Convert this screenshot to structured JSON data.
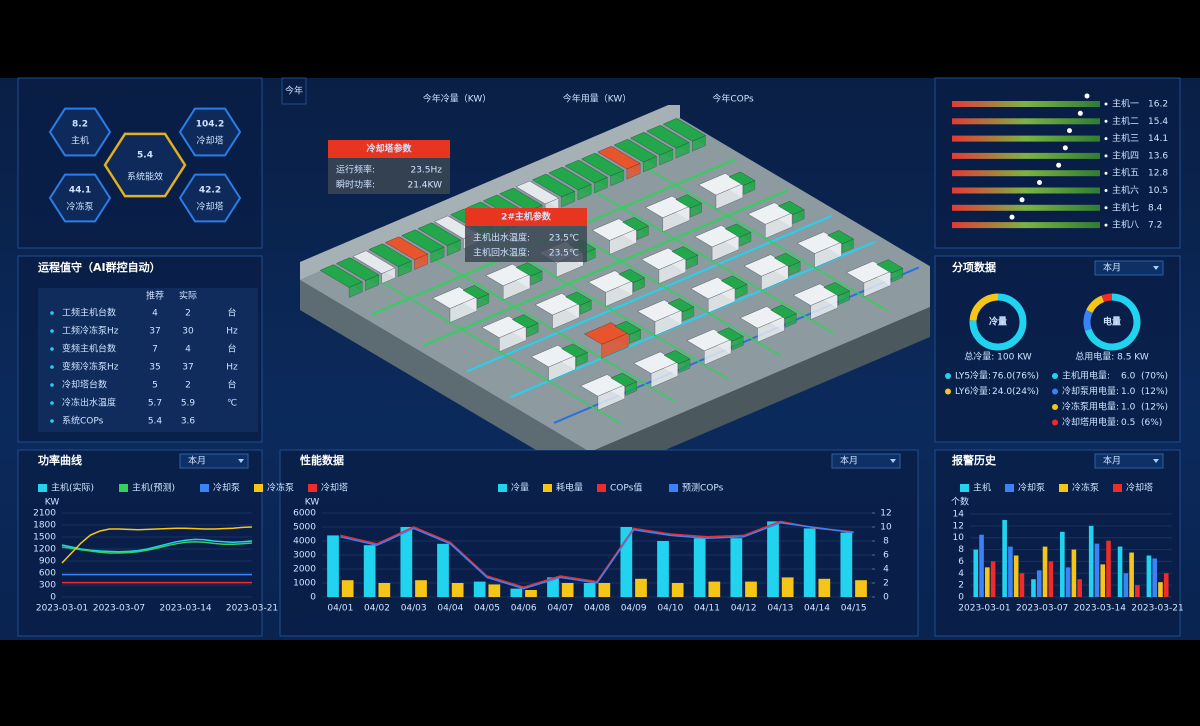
{
  "system_efficiency": {
    "center": {
      "value": 5.4,
      "label": "系统能效"
    },
    "items": [
      {
        "value": 8.2,
        "label": "主机"
      },
      {
        "value": 104.2,
        "label": "冷却塔"
      },
      {
        "value": 44.1,
        "label": "冷冻泵"
      },
      {
        "value": 42.2,
        "label": "冷却塔"
      }
    ]
  },
  "annual": {
    "badge": "今年",
    "labels": [
      "今年冷量（KW）",
      "今年用量（KW）",
      "今年COPs"
    ]
  },
  "duty": {
    "title": "运程值守（AI群控自动）",
    "columns": [
      "推荐",
      "实际"
    ],
    "rows": [
      [
        "工频主机台数",
        4,
        2,
        "台"
      ],
      [
        "工频冷冻泵Hz",
        37,
        30,
        "Hz"
      ],
      [
        "变频主机台数",
        7,
        4,
        "台"
      ],
      [
        "变频冷冻泵Hz",
        35,
        37,
        "Hz"
      ],
      [
        "冷却塔台数",
        5,
        2,
        "台"
      ],
      [
        "冷冻出水温度",
        5.7,
        5.9,
        "℃"
      ],
      [
        "系统COPs",
        5.4,
        3.6
      ]
    ]
  },
  "popups": [
    {
      "title": "冷却塔参数",
      "rows": [
        [
          "运行频率:",
          "23.5Hz"
        ],
        [
          "瞬时功率:",
          "21.4KW"
        ]
      ]
    },
    {
      "title": "2#主机参数",
      "rows": [
        [
          "主机出水温度:",
          "23.5℃"
        ],
        [
          "主机回水温度:",
          "23.5℃"
        ]
      ]
    }
  ],
  "hosts": [
    {
      "name": "主机一",
      "value": 16.2
    },
    {
      "name": "主机二",
      "value": 15.4
    },
    {
      "name": "主机三",
      "value": 14.1
    },
    {
      "name": "主机四",
      "value": 13.6
    },
    {
      "name": "主机五",
      "value": 12.8
    },
    {
      "name": "主机六",
      "value": 10.5
    },
    {
      "name": "主机七",
      "value": 8.4
    },
    {
      "name": "主机八",
      "value": 7.2
    }
  ],
  "breakdown": {
    "title": "分项数据",
    "dropdown": "本月",
    "donuts": [
      {
        "label": "冷量",
        "total": "总冷量: 100 KW",
        "items": [
          {
            "name": "LY5冷量:",
            "value": 76,
            "value_label": "76.0",
            "percent": 76,
            "percent_label": "(76%)",
            "color": "#22d3f0"
          },
          {
            "name": "LY6冷量:",
            "value": 24,
            "value_label": "24.0",
            "percent": 24,
            "percent_label": "(24%)",
            "color": "#f5c518"
          }
        ]
      },
      {
        "label": "电量",
        "total": "总用电量: 8.5 KW",
        "items": [
          {
            "name": "主机用电量:",
            "value": 6,
            "value_label": "6.0",
            "percent": 70,
            "percent_label": "(70%)",
            "color": "#22d3f0"
          },
          {
            "name": "冷却泵用电量:",
            "value": 1,
            "value_label": "1.0",
            "percent": 12,
            "percent_label": "(12%)",
            "color": "#3b82f6"
          },
          {
            "name": "冷冻泵用电量:",
            "value": 1,
            "value_label": "1.0",
            "percent": 12,
            "percent_label": "(12%)",
            "color": "#f5c518"
          },
          {
            "name": "冷却塔用电量:",
            "value": 0.5,
            "value_label": "0.5",
            "percent": 6,
            "percent_label": "(6%)",
            "color": "#ef2b2b"
          }
        ]
      }
    ]
  },
  "chart_data": [
    {
      "type": "line",
      "title": "功率曲线",
      "dropdown": "本月",
      "y_label": "KW",
      "categories": [
        "2023-03-01",
        null,
        null,
        null,
        null,
        null,
        "2023-03-07",
        null,
        null,
        null,
        null,
        null,
        null,
        "2023-03-14",
        null,
        null,
        null,
        null,
        null,
        null,
        "2023-03-21"
      ],
      "series": [
        {
          "name": "主机(实际)",
          "color": "#22d3f0",
          "values": [
            1300,
            1250,
            1200,
            1170,
            1150,
            1140,
            1130,
            1140,
            1160,
            1200,
            1260,
            1320,
            1380,
            1420,
            1440,
            1430,
            1400,
            1380,
            1370,
            1380,
            1400
          ]
        },
        {
          "name": "主机(预测)",
          "color": "#34d058",
          "values": [
            1250,
            1220,
            1180,
            1150,
            1120,
            1100,
            1100,
            1110,
            1130,
            1170,
            1220,
            1280,
            1330,
            1370,
            1380,
            1370,
            1340,
            1320,
            1320,
            1330,
            1350
          ]
        },
        {
          "name": "冷却泵",
          "color": "#3b82f6",
          "values": [
            560,
            560,
            560,
            560,
            560,
            560,
            560,
            560,
            560,
            560,
            560,
            560,
            560,
            560,
            560,
            560,
            560,
            560,
            560,
            560,
            560
          ]
        },
        {
          "name": "冷冻泵",
          "color": "#f5c518",
          "values": [
            850,
            1100,
            1350,
            1550,
            1650,
            1700,
            1700,
            1690,
            1680,
            1690,
            1700,
            1710,
            1720,
            1720,
            1710,
            1700,
            1700,
            1710,
            1720,
            1740,
            1750
          ]
        },
        {
          "name": "冷却塔",
          "color": "#ef2b2b",
          "values": [
            360,
            360,
            360,
            360,
            360,
            360,
            360,
            360,
            360,
            360,
            360,
            360,
            360,
            360,
            360,
            360,
            360,
            360,
            360,
            360,
            360
          ]
        }
      ],
      "ylim": [
        0,
        2100
      ],
      "yticks": [
        0,
        300,
        600,
        900,
        1200,
        1500,
        1800,
        2100
      ]
    },
    {
      "type": "bar",
      "title": "性能数据",
      "dropdown": "本月",
      "y_label": "KW",
      "categories": [
        "04/01",
        "04/02",
        "04/03",
        "04/04",
        "04/05",
        "04/06",
        "04/07",
        "04/08",
        "04/09",
        "04/10",
        "04/11",
        "04/12",
        "04/13",
        "04/14",
        "04/15"
      ],
      "series": [
        {
          "name": "冷量",
          "color": "#22d3f0",
          "values": [
            4400,
            3700,
            5000,
            3800,
            1100,
            600,
            1400,
            1000,
            5000,
            4000,
            4200,
            4200,
            5400,
            4900,
            4600
          ]
        },
        {
          "name": "耗电量",
          "color": "#f5c518",
          "values": [
            1200,
            1000,
            1200,
            1000,
            900,
            500,
            1000,
            1000,
            1300,
            1000,
            1100,
            1100,
            1400,
            1300,
            1200
          ]
        },
        {
          "name": "COPs值",
          "color": "#ef2b2b",
          "axis": "y2",
          "values": [
            8.8,
            7.6,
            10,
            7.8,
            3,
            1.4,
            3,
            2.2,
            9.8,
            9,
            8.6,
            8.8,
            10.8,
            9.8,
            9.3
          ]
        },
        {
          "name": "预测COPs",
          "color": "#3b82f6",
          "axis": "y2",
          "values": [
            8.6,
            7.4,
            9.8,
            7.6,
            2.8,
            1.2,
            2.8,
            2,
            9.6,
            8.8,
            8.4,
            8.6,
            10.6,
            9.9,
            9.2
          ]
        }
      ],
      "ylim": [
        0,
        6000
      ],
      "yticks": [
        0,
        1000,
        2000,
        3000,
        4000,
        5000,
        6000
      ],
      "y2lim": [
        0,
        12
      ],
      "y2ticks": [
        0,
        2,
        4,
        6,
        8,
        10,
        12
      ]
    },
    {
      "type": "bar",
      "title": "报警历史",
      "dropdown": "本月",
      "y_label": "个数",
      "categories": [
        "2023-03-01",
        null,
        "2023-03-07",
        null,
        "2023-03-14",
        null,
        "2023-03-21"
      ],
      "series": [
        {
          "name": "主机",
          "color": "#22d3f0",
          "values": [
            8,
            13,
            3,
            11,
            12,
            8.5,
            7
          ]
        },
        {
          "name": "冷却泵",
          "color": "#3b82f6",
          "values": [
            10.5,
            8.5,
            4.5,
            5,
            9,
            4,
            6.5
          ]
        },
        {
          "name": "冷冻泵",
          "color": "#f5c518",
          "values": [
            5,
            7,
            8.5,
            8,
            5.5,
            7.5,
            2.5
          ]
        },
        {
          "name": "冷却塔",
          "color": "#ef2b2b",
          "values": [
            6,
            4,
            6,
            3,
            9.5,
            2,
            4
          ]
        }
      ],
      "ylim": [
        0,
        14
      ],
      "yticks": [
        0,
        2,
        4,
        6,
        8,
        10,
        12,
        14
      ]
    }
  ]
}
